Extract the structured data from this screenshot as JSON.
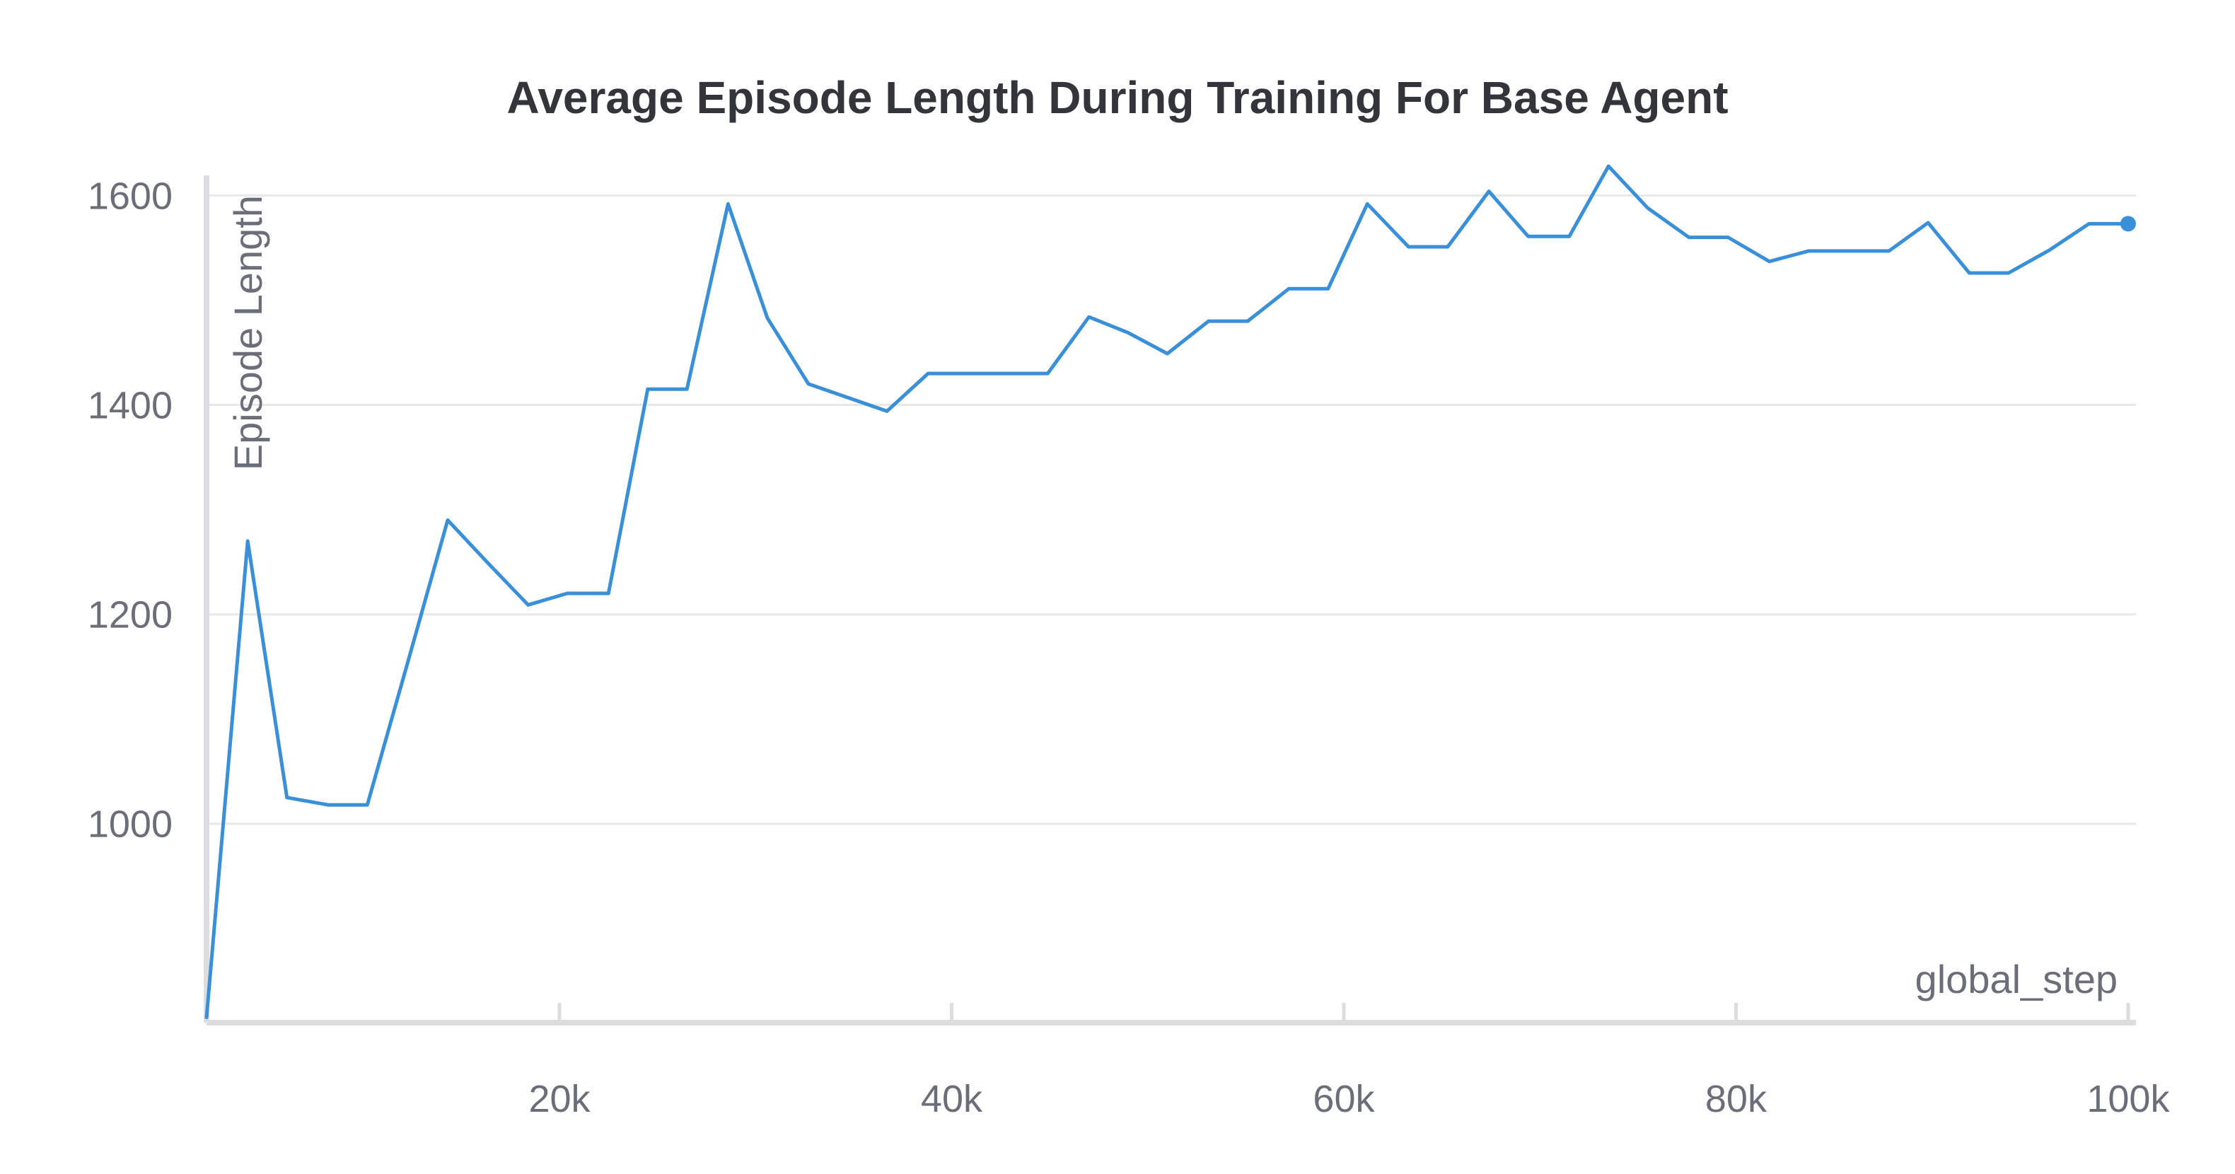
{
  "chart_data": {
    "type": "line",
    "title": "Average Episode Length During Training For Base Agent",
    "xlabel": "global_step",
    "ylabel": "Episode Length",
    "xlim": [
      2000,
      100400
    ],
    "ylim": [
      810,
      1630
    ],
    "x_ticks": [
      20000,
      40000,
      60000,
      80000,
      100000
    ],
    "x_tick_labels": [
      "20k",
      "40k",
      "60k",
      "80k",
      "100k"
    ],
    "y_ticks": [
      1000,
      1200,
      1400,
      1600
    ],
    "y_tick_labels": [
      "1000",
      "1200",
      "1400",
      "1600"
    ],
    "grid": true,
    "legend": "none",
    "color": "#3a8fd9",
    "series": [
      {
        "x": [
          2000,
          4100,
          6100,
          8200,
          10200,
          12200,
          14300,
          16300,
          18400,
          20400,
          22500,
          24500,
          26500,
          28600,
          30600,
          32700,
          34700,
          36700,
          38800,
          40800,
          42900,
          44900,
          47000,
          49000,
          51000,
          53100,
          55100,
          57200,
          59200,
          61200,
          63300,
          65300,
          67400,
          69400,
          71500,
          73500,
          75500,
          77600,
          79600,
          81700,
          83700,
          85700,
          87800,
          89800,
          91900,
          93900,
          96000,
          98000,
          100000
        ],
        "y": [
          815,
          1270,
          1025,
          1018,
          1018,
          1150,
          1290,
          1250,
          1209,
          1220,
          1220,
          1415,
          1415,
          1592,
          1483,
          1420,
          1407,
          1394,
          1430,
          1430,
          1430,
          1430,
          1484,
          1469,
          1449,
          1480,
          1480,
          1511,
          1511,
          1592,
          1551,
          1551,
          1604,
          1561,
          1561,
          1628,
          1588,
          1560,
          1560,
          1537,
          1547,
          1547,
          1547,
          1574,
          1526,
          1526,
          1548,
          1573,
          1573
        ]
      }
    ]
  }
}
